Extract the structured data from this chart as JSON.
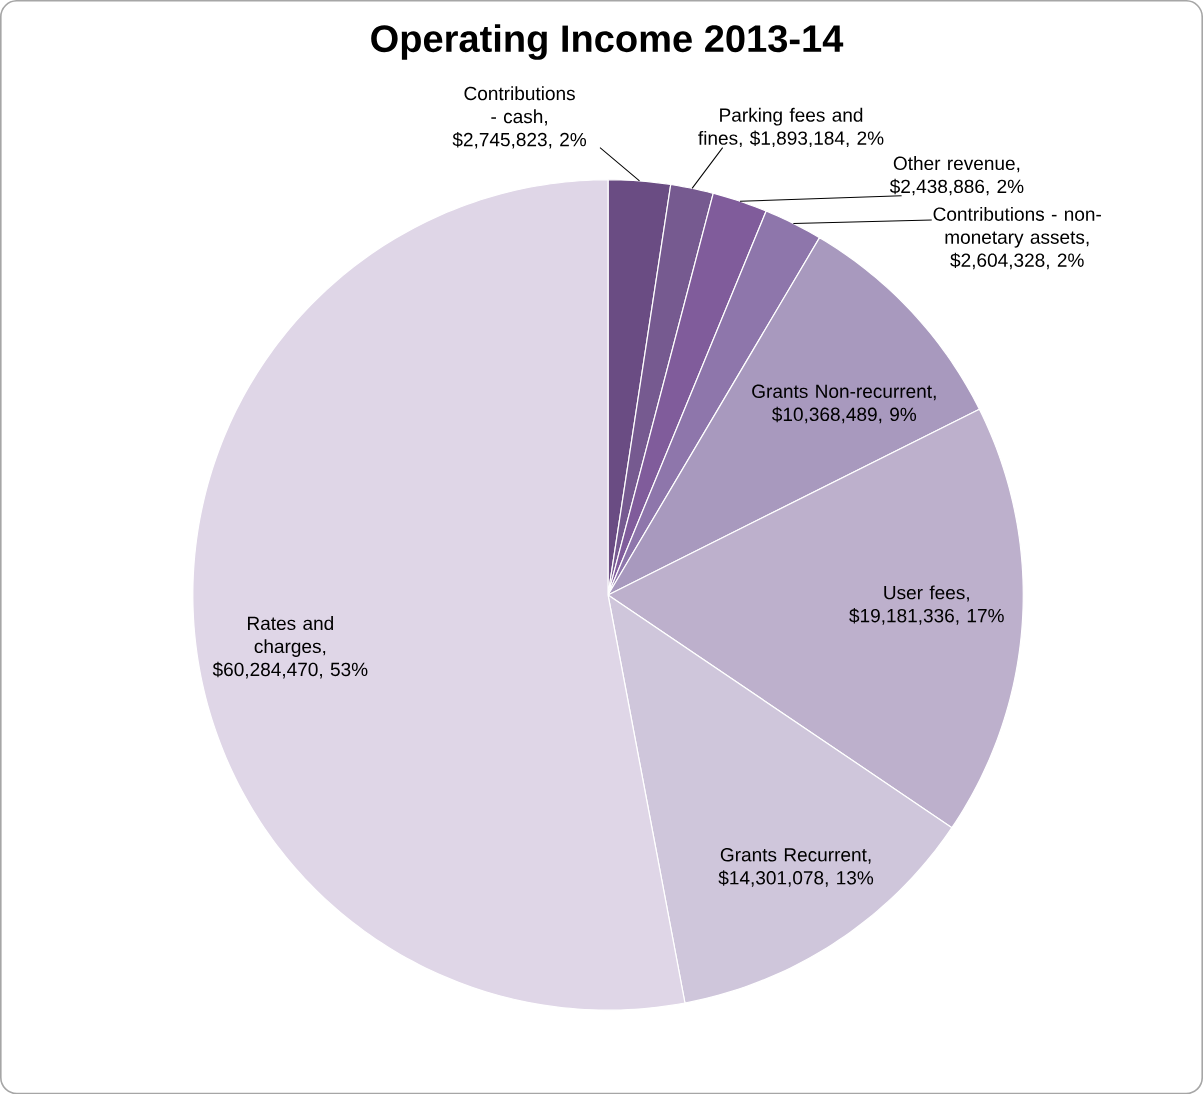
{
  "chart_data": {
    "type": "pie",
    "title": "Operating Income 2013-14",
    "categories": [
      "Contributions - cash",
      "Parking fees and fines",
      "Other revenue",
      "Contributions - non-monetary assets",
      "Grants Non-recurrent",
      "User fees",
      "Grants Recurrent",
      "Rates and charges"
    ],
    "values": [
      2745823,
      1893184,
      2438886,
      2604328,
      10368489,
      19181336,
      14301078,
      60284470
    ],
    "value_labels": [
      ", $2,745,823, 2%",
      ", $1,893,184, 2%",
      ", $2,438,886,   2%",
      ", $2,604,328, 2%",
      ", $10,368,489, 9%",
      ", $19,181,336, 17%",
      ", $14,301,078, 13%",
      ", $60,284,470, 53%"
    ],
    "colors": [
      "#6a4c83",
      "#765a90",
      "#805c9b",
      "#8e76ab",
      "#a899be",
      "#bdb0cc",
      "#cfc6db",
      "#dfd6e7"
    ]
  }
}
